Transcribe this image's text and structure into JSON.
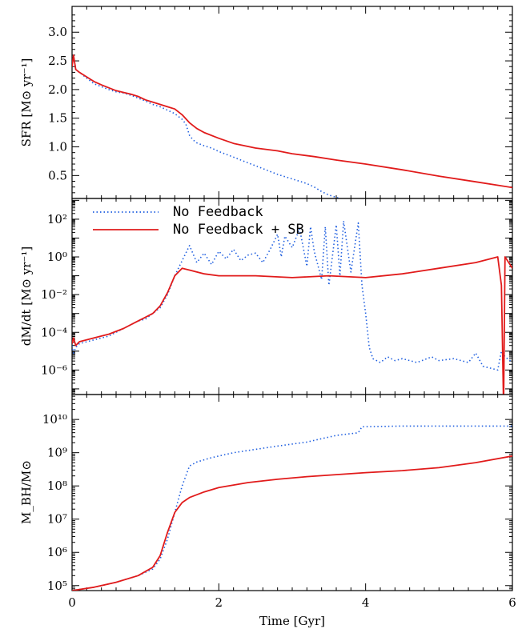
{
  "colors": {
    "no_feedback": "#1f5fe0",
    "no_feedback_sb": "#e11b1b"
  },
  "chart_data": [
    {
      "type": "line",
      "panel": "top",
      "xlim": [
        0,
        6
      ],
      "ylim": [
        0.1,
        3.45
      ],
      "yscale": "linear",
      "ylabel": "SFR [M⊙ yr⁻¹]",
      "y_ticks": [
        0.5,
        1.0,
        1.5,
        2.0,
        2.5,
        3.0
      ],
      "y_tick_labels": [
        "0.5",
        "1.0",
        "1.5",
        "2.0",
        "2.5",
        "3.0"
      ],
      "series": [
        {
          "name": "No Feedback",
          "style": "dotted",
          "x": [
            0,
            0.02,
            0.05,
            0.1,
            0.2,
            0.3,
            0.4,
            0.5,
            0.6,
            0.7,
            0.8,
            0.9,
            1.0,
            1.1,
            1.2,
            1.3,
            1.4,
            1.5,
            1.55,
            1.6,
            1.65,
            1.7,
            1.8,
            1.9,
            2.0,
            2.2,
            2.4,
            2.6,
            2.8,
            3.0,
            3.2,
            3.3,
            3.4,
            3.5,
            3.6,
            3.7
          ],
          "values": [
            2.4,
            2.6,
            2.35,
            2.3,
            2.2,
            2.1,
            2.05,
            2.0,
            1.96,
            1.94,
            1.9,
            1.85,
            1.8,
            1.74,
            1.7,
            1.64,
            1.58,
            1.48,
            1.4,
            1.2,
            1.12,
            1.07,
            1.02,
            0.98,
            0.92,
            0.82,
            0.72,
            0.62,
            0.52,
            0.44,
            0.36,
            0.3,
            0.22,
            0.16,
            0.12,
            0.08
          ]
        },
        {
          "name": "No Feedback + SB",
          "style": "solid",
          "x": [
            0,
            0.02,
            0.05,
            0.1,
            0.2,
            0.3,
            0.4,
            0.5,
            0.6,
            0.7,
            0.8,
            0.9,
            1.0,
            1.1,
            1.2,
            1.3,
            1.4,
            1.5,
            1.6,
            1.7,
            1.8,
            2.0,
            2.2,
            2.5,
            2.8,
            3.0,
            3.3,
            3.6,
            4.0,
            4.5,
            5.0,
            5.5,
            6.0
          ],
          "values": [
            2.4,
            2.6,
            2.35,
            2.3,
            2.22,
            2.14,
            2.08,
            2.03,
            1.98,
            1.95,
            1.92,
            1.88,
            1.82,
            1.78,
            1.74,
            1.7,
            1.66,
            1.56,
            1.42,
            1.32,
            1.25,
            1.15,
            1.06,
            0.98,
            0.93,
            0.88,
            0.83,
            0.77,
            0.7,
            0.6,
            0.49,
            0.39,
            0.29
          ]
        }
      ]
    },
    {
      "type": "line",
      "panel": "middle",
      "xlim": [
        0,
        6
      ],
      "ylim": [
        -7.3,
        3.1
      ],
      "yscale": "log",
      "ylabel": "dM/dt [M⊙ yr⁻¹]",
      "y_ticks": [
        -6,
        -4,
        -2,
        0,
        2
      ],
      "y_tick_labels": [
        "10⁻⁶",
        "10⁻⁴",
        "10⁻²",
        "10⁰",
        "10²"
      ],
      "legend": {
        "placement": "top-left",
        "entries": [
          "No Feedback",
          "No Feedback + SB"
        ]
      },
      "series": [
        {
          "name": "No Feedback",
          "style": "dotted",
          "x": [
            0,
            0.02,
            0.05,
            0.1,
            0.3,
            0.5,
            0.7,
            0.9,
            1.0,
            1.1,
            1.2,
            1.3,
            1.4,
            1.5,
            1.6,
            1.7,
            1.8,
            1.9,
            2.0,
            2.1,
            2.2,
            2.3,
            2.4,
            2.5,
            2.6,
            2.7,
            2.8,
            2.85,
            2.9,
            3.0,
            3.1,
            3.2,
            3.25,
            3.3,
            3.4,
            3.45,
            3.5,
            3.6,
            3.65,
            3.7,
            3.8,
            3.9,
            3.95,
            4.0,
            4.05,
            4.1,
            4.2,
            4.3,
            4.4,
            4.5,
            4.7,
            4.9,
            5.0,
            5.2,
            5.4,
            5.5,
            5.6,
            5.8,
            5.85,
            5.9,
            6.0
          ],
          "values": [
            -4.7,
            -5.1,
            -4.8,
            -4.6,
            -4.4,
            -4.2,
            -3.8,
            -3.4,
            -3.3,
            -3.0,
            -2.7,
            -2.0,
            -1.0,
            -0.2,
            0.6,
            -0.3,
            0.2,
            -0.4,
            0.3,
            -0.1,
            0.4,
            -0.2,
            0.1,
            0.2,
            -0.3,
            0.4,
            1.2,
            0.0,
            1.1,
            0.5,
            1.5,
            -0.5,
            1.6,
            0.3,
            -1.2,
            1.6,
            -1.5,
            1.7,
            -1.0,
            1.9,
            -0.8,
            1.8,
            -1.5,
            -3.0,
            -4.8,
            -5.4,
            -5.6,
            -5.3,
            -5.5,
            -5.4,
            -5.6,
            -5.3,
            -5.5,
            -5.4,
            -5.6,
            -5.1,
            -5.8,
            -6.0,
            -5.0,
            -5.3,
            -5.6
          ]
        },
        {
          "name": "No Feedback + SB",
          "style": "solid",
          "x": [
            0,
            0.02,
            0.05,
            0.1,
            0.3,
            0.5,
            0.7,
            0.9,
            1.0,
            1.1,
            1.2,
            1.3,
            1.4,
            1.5,
            1.6,
            1.8,
            2.0,
            2.5,
            3.0,
            3.5,
            4.0,
            4.5,
            5.0,
            5.5,
            5.8,
            5.85,
            5.88,
            5.9,
            6.0
          ],
          "values": [
            -4.6,
            -4.3,
            -4.7,
            -4.5,
            -4.3,
            -4.1,
            -3.8,
            -3.4,
            -3.2,
            -3.0,
            -2.6,
            -1.9,
            -1.0,
            -0.6,
            -0.7,
            -0.9,
            -1.0,
            -1.0,
            -1.1,
            -1.0,
            -1.1,
            -0.9,
            -0.6,
            -0.3,
            0.0,
            -1.5,
            -8.0,
            0.0,
            -0.6
          ]
        }
      ]
    },
    {
      "type": "line",
      "panel": "bottom",
      "xlim": [
        0,
        6
      ],
      "ylim": [
        4.85,
        10.75
      ],
      "yscale": "log",
      "ylabel": "M_BH/M⊙",
      "xlabel": "Time  [Gyr]",
      "x_ticks": [
        0,
        2,
        4,
        6
      ],
      "x_tick_labels": [
        "0",
        "2",
        "4",
        "6"
      ],
      "y_ticks": [
        5,
        6,
        7,
        8,
        9,
        10
      ],
      "y_tick_labels": [
        "10⁵",
        "10⁶",
        "10⁷",
        "10⁸",
        "10⁹",
        "10¹⁰"
      ],
      "series": [
        {
          "name": "No Feedback",
          "style": "dotted",
          "x": [
            0,
            0.3,
            0.6,
            0.9,
            1.1,
            1.2,
            1.3,
            1.4,
            1.5,
            1.6,
            1.7,
            1.9,
            2.2,
            2.5,
            2.8,
            3.2,
            3.4,
            3.6,
            3.9,
            3.95,
            4.5,
            5.0,
            5.5,
            6.0
          ],
          "values": [
            4.85,
            4.95,
            5.1,
            5.3,
            5.5,
            5.8,
            6.4,
            7.2,
            8.0,
            8.6,
            8.72,
            8.85,
            9.0,
            9.1,
            9.2,
            9.32,
            9.42,
            9.52,
            9.6,
            9.78,
            9.8,
            9.8,
            9.8,
            9.8
          ]
        },
        {
          "name": "No Feedback + SB",
          "style": "solid",
          "x": [
            0,
            0.3,
            0.6,
            0.9,
            1.1,
            1.2,
            1.3,
            1.4,
            1.5,
            1.6,
            1.8,
            2.0,
            2.4,
            2.8,
            3.2,
            3.6,
            4.0,
            4.5,
            5.0,
            5.5,
            6.0
          ],
          "values": [
            4.85,
            4.95,
            5.1,
            5.3,
            5.55,
            5.9,
            6.6,
            7.2,
            7.5,
            7.65,
            7.82,
            7.95,
            8.1,
            8.2,
            8.28,
            8.34,
            8.4,
            8.46,
            8.55,
            8.7,
            8.9
          ]
        }
      ]
    }
  ]
}
